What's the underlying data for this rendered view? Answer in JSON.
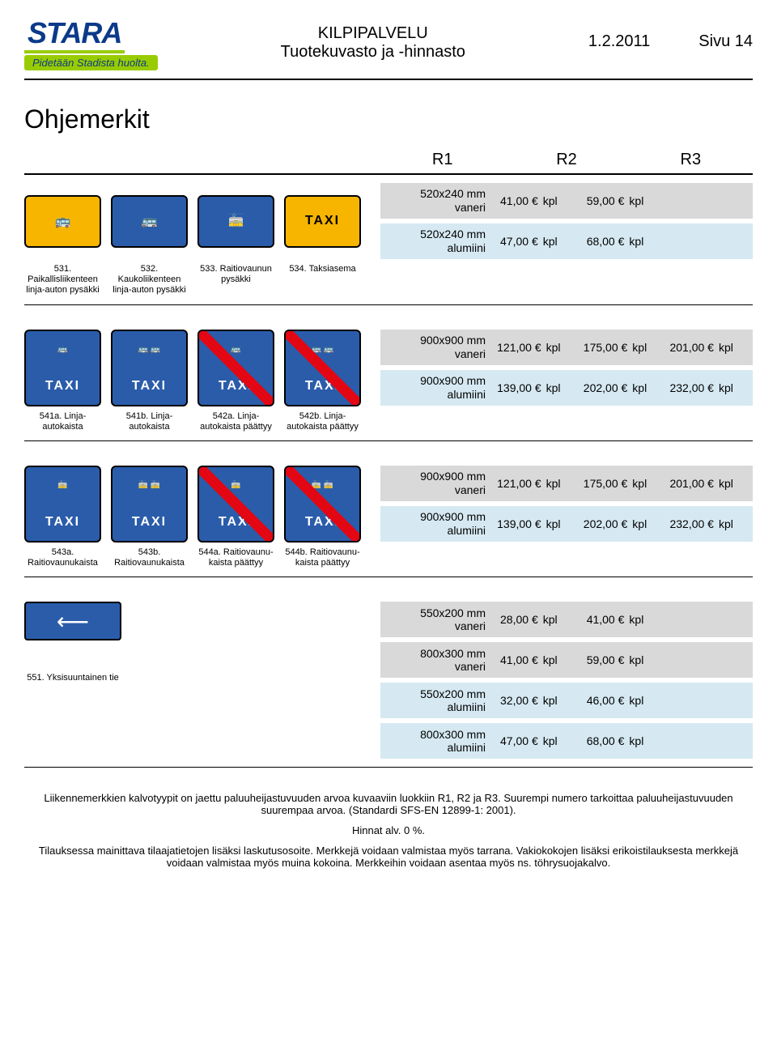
{
  "header": {
    "logo": "STARA",
    "tagline": "Pidetään Stadista huolta.",
    "center1": "KILPIPALVELU",
    "center2": "Tuotekuvasto ja -hinnasto",
    "date": "1.2.2011",
    "page": "Sivu 14"
  },
  "title": "Ohjemerkit",
  "rheader": {
    "r1": "R1",
    "r2": "R2",
    "r3": "R3"
  },
  "group1": {
    "rows": [
      {
        "dim": "520x240 mm vaneri",
        "bg": "bg-grey",
        "cells": [
          "41,00 €",
          "59,00 €",
          ""
        ]
      },
      {
        "dim": "520x240 mm alumiini",
        "bg": "bg-lblue",
        "cells": [
          "47,00 €",
          "68,00 €",
          ""
        ]
      }
    ],
    "caps": [
      "531. Paikallisliikenteen linja-auton pysäkki",
      "532. Kaukoliikenteen linja-auton pysäkki",
      "533. Raitiovaunun pysäkki",
      "534. Taksiasema"
    ]
  },
  "group2": {
    "rows": [
      {
        "dim": "900x900 mm vaneri",
        "bg": "bg-grey",
        "cells": [
          "121,00 €",
          "175,00 €",
          "201,00 €"
        ]
      },
      {
        "dim": "900x900 mm alumiini",
        "bg": "bg-lblue",
        "cells": [
          "139,00 €",
          "202,00 €",
          "232,00 €"
        ]
      }
    ],
    "caps": [
      "541a. Linja-autokaista",
      "541b. Linja-autokaista",
      "542a. Linja-autokaista päättyy",
      "542b. Linja-autokaista päättyy"
    ]
  },
  "group3": {
    "rows": [
      {
        "dim": "900x900 mm vaneri",
        "bg": "bg-grey",
        "cells": [
          "121,00 €",
          "175,00 €",
          "201,00 €"
        ]
      },
      {
        "dim": "900x900 mm alumiini",
        "bg": "bg-lblue",
        "cells": [
          "139,00 €",
          "202,00 €",
          "232,00 €"
        ]
      }
    ],
    "caps": [
      "543a. Raitiovaunukaista",
      "543b. Raitiovaunukaista",
      "544a. Raitiovaunu-kaista päättyy",
      "544b. Raitiovaunu-kaista päättyy"
    ]
  },
  "group4": {
    "rows": [
      {
        "dim": "550x200 mm vaneri",
        "bg": "bg-grey",
        "cells": [
          "28,00 €",
          "41,00 €",
          ""
        ]
      },
      {
        "dim": "800x300 mm vaneri",
        "bg": "bg-grey",
        "cells": [
          "41,00 €",
          "59,00 €",
          ""
        ]
      },
      {
        "dim": "550x200 mm alumiini",
        "bg": "bg-lblue",
        "cells": [
          "32,00 €",
          "46,00 €",
          ""
        ]
      },
      {
        "dim": "800x300 mm alumiini",
        "bg": "bg-lblue",
        "cells": [
          "47,00 €",
          "68,00 €",
          ""
        ]
      }
    ],
    "cap": "551. Yksisuuntainen tie"
  },
  "footer": {
    "p1": "Liikennemerkkien kalvotyypit on jaettu paluuheijastuvuuden arvoa kuvaaviin luokkiin R1, R2 ja R3. Suurempi numero tarkoittaa paluuheijastuvuuden suurempaa arvoa. (Standardi SFS-EN 12899-1: 2001).",
    "p2": "Hinnat alv. 0 %.",
    "p3": "Tilauksessa mainittava tilaajatietojen lisäksi laskutusosoite. Merkkejä voidaan valmistaa myös tarrana. Vakiokokojen lisäksi erikoistilauksesta merkkejä voidaan valmistaa myös muina kokoina. Merkkeihin voidaan asentaa myös ns. töhrysuojakalvo."
  },
  "unit": "kpl"
}
